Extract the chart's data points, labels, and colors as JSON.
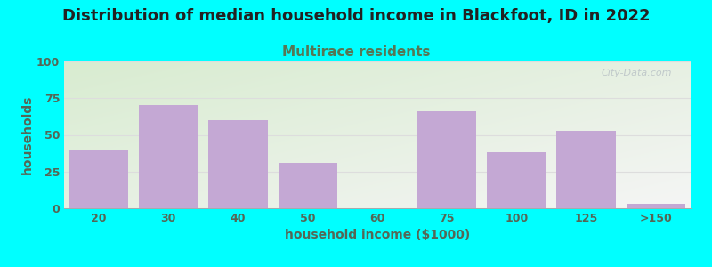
{
  "title": "Distribution of median household income in Blackfoot, ID in 2022",
  "subtitle": "Multirace residents",
  "xlabel": "household income ($1000)",
  "ylabel": "households",
  "categories": [
    "20",
    "30",
    "40",
    "50",
    "60",
    "75",
    "100",
    "125",
    ">150"
  ],
  "values": [
    40,
    70,
    60,
    31,
    0,
    66,
    38,
    53,
    3
  ],
  "bar_color": "#c4a8d4",
  "background_color": "#00ffff",
  "plot_bg_top_left": "#d8ecd0",
  "plot_bg_bottom_right": "#f5f5f5",
  "ylim": [
    0,
    100
  ],
  "yticks": [
    0,
    25,
    50,
    75,
    100
  ],
  "title_fontsize": 13,
  "subtitle_fontsize": 11,
  "title_color": "#222222",
  "subtitle_color": "#557755",
  "axis_label_color": "#556655",
  "tick_color": "#556655",
  "grid_color": "#dddddd",
  "watermark": "City-Data.com"
}
